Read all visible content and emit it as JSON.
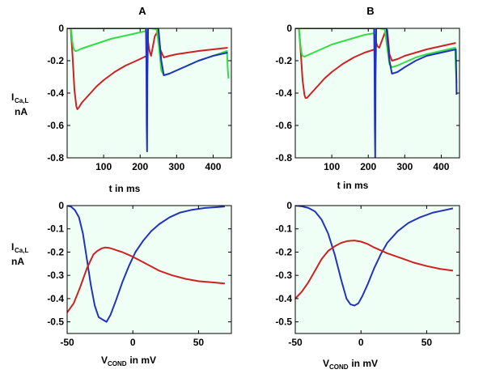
{
  "chart_data": [
    {
      "type": "line",
      "panel": "A-top",
      "title": "A",
      "xlabel": "t in ms",
      "ylabel_main": "I",
      "ylabel_sub": "Ca,L",
      "ylabel_unit": "nA",
      "xlim": [
        0,
        450
      ],
      "ylim": [
        -0.8,
        0
      ],
      "xticks": [
        "100",
        "200",
        "300",
        "400"
      ],
      "xtick_values": [
        100,
        200,
        300,
        400
      ],
      "yticks": [
        "0",
        "-0.2",
        "-0.4",
        "-0.6",
        "-0.8"
      ],
      "ytick_values": [
        0,
        -0.2,
        -0.4,
        -0.6,
        -0.8
      ],
      "series": [
        {
          "name": "red",
          "color": "#cc2222",
          "x": [
            10,
            15,
            20,
            25,
            28,
            32,
            40,
            60,
            80,
            100,
            130,
            160,
            190,
            218,
            219,
            220,
            222,
            224,
            227,
            230,
            240,
            250,
            255,
            265,
            280,
            300,
            330,
            360,
            400,
            440
          ],
          "y": [
            0,
            -0.18,
            -0.38,
            -0.48,
            -0.5,
            -0.49,
            -0.46,
            -0.41,
            -0.36,
            -0.32,
            -0.27,
            -0.23,
            -0.2,
            -0.17,
            -0.1,
            -0.02,
            -0.08,
            -0.12,
            -0.15,
            -0.17,
            -0.05,
            -0.01,
            -0.13,
            -0.18,
            -0.17,
            -0.16,
            -0.15,
            -0.14,
            -0.13,
            -0.12
          ]
        },
        {
          "name": "green",
          "color": "#33dd44",
          "x": [
            10,
            12,
            14,
            17,
            20,
            22,
            25,
            30,
            40,
            60,
            80,
            100,
            120,
            150,
            180,
            210,
            218,
            219,
            222,
            230,
            245,
            252,
            258,
            265,
            280,
            300,
            330,
            360,
            400,
            438,
            440,
            442
          ],
          "y": [
            0,
            -0.03,
            -0.08,
            -0.12,
            -0.135,
            -0.14,
            -0.14,
            -0.135,
            -0.125,
            -0.11,
            -0.095,
            -0.08,
            -0.065,
            -0.05,
            -0.035,
            -0.02,
            -0.015,
            -0.005,
            0,
            0,
            -0.005,
            -0.12,
            -0.26,
            -0.29,
            -0.28,
            -0.26,
            -0.23,
            -0.2,
            -0.17,
            -0.14,
            -0.25,
            -0.31
          ]
        },
        {
          "name": "blue",
          "color": "#2233bb",
          "x": [
            0,
            100,
            200,
            216,
            217,
            218,
            219,
            220,
            222,
            230,
            250,
            258,
            265,
            280,
            300,
            330,
            360,
            400,
            440
          ],
          "y": [
            0,
            0,
            0,
            0,
            -0.2,
            -0.6,
            -0.76,
            -0.3,
            0,
            0,
            0,
            -0.2,
            -0.29,
            -0.28,
            -0.26,
            -0.23,
            -0.2,
            -0.17,
            -0.15
          ]
        }
      ]
    },
    {
      "type": "line",
      "panel": "B-top",
      "title": "B",
      "xlabel": "t in ms",
      "xlim": [
        0,
        450
      ],
      "ylim": [
        -0.8,
        0
      ],
      "xticks": [
        "100",
        "200",
        "300",
        "400"
      ],
      "xtick_values": [
        100,
        200,
        300,
        400
      ],
      "yticks": [
        "0",
        "-0.2",
        "-0.4",
        "-0.6",
        "-0.8"
      ],
      "ytick_values": [
        0,
        -0.2,
        -0.4,
        -0.6,
        -0.8
      ],
      "series": [
        {
          "name": "red",
          "color": "#cc2222",
          "x": [
            10,
            15,
            20,
            25,
            28,
            32,
            40,
            60,
            80,
            100,
            130,
            160,
            190,
            218,
            219,
            220,
            222,
            225,
            230,
            245,
            252,
            258,
            265,
            280,
            300,
            330,
            360,
            400,
            440
          ],
          "y": [
            0,
            -0.15,
            -0.32,
            -0.41,
            -0.43,
            -0.43,
            -0.41,
            -0.36,
            -0.31,
            -0.27,
            -0.22,
            -0.18,
            -0.15,
            -0.13,
            -0.09,
            -0.04,
            -0.09,
            -0.11,
            -0.12,
            -0.03,
            -0.01,
            -0.16,
            -0.2,
            -0.19,
            -0.17,
            -0.15,
            -0.13,
            -0.11,
            -0.09
          ]
        },
        {
          "name": "green",
          "color": "#33dd44",
          "x": [
            10,
            12,
            14,
            17,
            20,
            25,
            30,
            40,
            60,
            80,
            100,
            130,
            160,
            190,
            218,
            219,
            222,
            230,
            245,
            252,
            258,
            265,
            280,
            300,
            330,
            360,
            400,
            438,
            440,
            442
          ],
          "y": [
            0,
            -0.04,
            -0.1,
            -0.15,
            -0.17,
            -0.175,
            -0.17,
            -0.16,
            -0.14,
            -0.12,
            -0.1,
            -0.08,
            -0.06,
            -0.04,
            -0.03,
            -0.01,
            0,
            0,
            -0.005,
            -0.12,
            -0.22,
            -0.24,
            -0.23,
            -0.21,
            -0.18,
            -0.16,
            -0.14,
            -0.12,
            -0.25,
            -0.34
          ]
        },
        {
          "name": "blue",
          "color": "#2233bb",
          "x": [
            0,
            100,
            200,
            216,
            217,
            218,
            219,
            220,
            222,
            230,
            250,
            258,
            265,
            280,
            300,
            330,
            360,
            400,
            440,
            442
          ],
          "y": [
            0,
            0,
            0,
            0,
            -0.2,
            -0.6,
            -0.8,
            -0.3,
            0,
            0,
            0,
            -0.2,
            -0.28,
            -0.27,
            -0.24,
            -0.2,
            -0.17,
            -0.15,
            -0.13,
            -0.41
          ]
        }
      ]
    },
    {
      "type": "line",
      "panel": "A-bottom",
      "xlabel_main": "V",
      "xlabel_sub": "COND",
      "xlabel_rest": " in mV",
      "ylabel_main": "I",
      "ylabel_sub": "Ca,L",
      "ylabel_unit": "nA",
      "xlim": [
        -50,
        75
      ],
      "ylim": [
        -0.55,
        0
      ],
      "xticks": [
        "-50",
        "0",
        "50"
      ],
      "xtick_values": [
        -50,
        0,
        50
      ],
      "yticks": [
        "0",
        "-0.1",
        "-0.2",
        "-0.3",
        "-0.4",
        "-0.5"
      ],
      "ytick_values": [
        0,
        -0.1,
        -0.2,
        -0.3,
        -0.4,
        -0.5
      ],
      "series": [
        {
          "name": "blue",
          "color": "#2233bb",
          "x": [
            -50,
            -47,
            -44,
            -41,
            -38,
            -35,
            -32,
            -29,
            -26,
            -23,
            -20,
            -17,
            -13,
            -8,
            -3,
            2,
            8,
            14,
            20,
            28,
            36,
            45,
            55,
            65,
            70
          ],
          "y": [
            0,
            -0.005,
            -0.02,
            -0.05,
            -0.12,
            -0.23,
            -0.34,
            -0.43,
            -0.48,
            -0.49,
            -0.5,
            -0.47,
            -0.41,
            -0.33,
            -0.26,
            -0.2,
            -0.15,
            -0.11,
            -0.08,
            -0.05,
            -0.03,
            -0.018,
            -0.01,
            -0.006,
            -0.004
          ]
        },
        {
          "name": "red",
          "color": "#cc2222",
          "x": [
            -50,
            -45,
            -40,
            -35,
            -30,
            -27,
            -24,
            -21,
            -18,
            -15,
            -12,
            -8,
            -4,
            0,
            5,
            10,
            20,
            30,
            40,
            50,
            60,
            70
          ],
          "y": [
            -0.46,
            -0.42,
            -0.35,
            -0.27,
            -0.21,
            -0.195,
            -0.185,
            -0.18,
            -0.182,
            -0.187,
            -0.193,
            -0.2,
            -0.21,
            -0.22,
            -0.235,
            -0.25,
            -0.28,
            -0.3,
            -0.315,
            -0.325,
            -0.33,
            -0.335
          ]
        }
      ]
    },
    {
      "type": "line",
      "panel": "B-bottom",
      "xlabel_main": "V",
      "xlabel_sub": "COND",
      "xlabel_rest": " in mV",
      "xlim": [
        -50,
        75
      ],
      "ylim": [
        -0.55,
        0
      ],
      "xticks": [
        "-50",
        "0",
        "50"
      ],
      "xtick_values": [
        -50,
        0,
        50
      ],
      "yticks": [
        "0",
        "-0.1",
        "-0.2",
        "-0.3",
        "-0.4",
        "-0.5"
      ],
      "ytick_values": [
        0,
        -0.1,
        -0.2,
        -0.3,
        -0.4,
        -0.5
      ],
      "series": [
        {
          "name": "blue",
          "color": "#2233bb",
          "x": [
            -50,
            -45,
            -40,
            -35,
            -30,
            -25,
            -20,
            -15,
            -11,
            -8,
            -5,
            -2,
            1,
            5,
            10,
            15,
            20,
            28,
            36,
            45,
            55,
            65,
            70
          ],
          "y": [
            0,
            -0.003,
            -0.01,
            -0.025,
            -0.06,
            -0.12,
            -0.21,
            -0.32,
            -0.4,
            -0.425,
            -0.43,
            -0.42,
            -0.39,
            -0.34,
            -0.27,
            -0.21,
            -0.16,
            -0.11,
            -0.075,
            -0.05,
            -0.03,
            -0.018,
            -0.012
          ]
        },
        {
          "name": "red",
          "color": "#cc2222",
          "x": [
            -50,
            -45,
            -40,
            -35,
            -30,
            -25,
            -20,
            -15,
            -10,
            -5,
            0,
            5,
            10,
            20,
            30,
            40,
            50,
            60,
            70
          ],
          "y": [
            -0.4,
            -0.37,
            -0.33,
            -0.28,
            -0.23,
            -0.195,
            -0.175,
            -0.16,
            -0.152,
            -0.15,
            -0.155,
            -0.165,
            -0.18,
            -0.205,
            -0.225,
            -0.245,
            -0.26,
            -0.272,
            -0.28
          ]
        }
      ]
    }
  ]
}
